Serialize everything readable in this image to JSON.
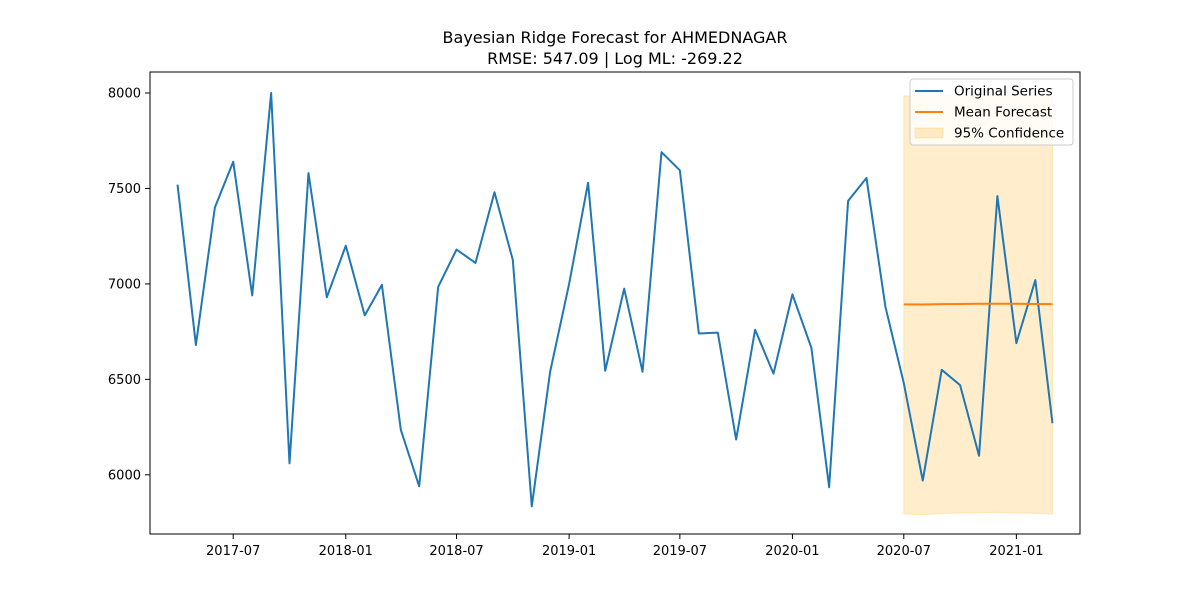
{
  "chart_data": {
    "type": "line",
    "title": "Bayesian Ridge Forecast for AHMEDNAGAR",
    "subtitle": "RMSE: 547.09 | Log ML: -269.22",
    "xlabel": "",
    "ylabel": "",
    "x_axis_type": "date",
    "xlim": [
      "2017-02-15",
      "2021-04-15"
    ],
    "ylim": [
      5690,
      8110
    ],
    "x_ticks": [
      "2017-07-01",
      "2018-01-01",
      "2018-07-01",
      "2019-01-01",
      "2019-07-01",
      "2020-01-01",
      "2020-07-01",
      "2021-01-01"
    ],
    "x_tick_labels": [
      "2017-07",
      "2018-01",
      "2018-07",
      "2019-01",
      "2019-07",
      "2020-01",
      "2020-07",
      "2021-01"
    ],
    "y_ticks": [
      6000,
      6500,
      7000,
      7500,
      8000
    ],
    "y_tick_labels": [
      "6000",
      "6500",
      "7000",
      "7500",
      "8000"
    ],
    "grid": false,
    "legend_position": "top-right",
    "legend": [
      "Original Series",
      "Mean Forecast",
      "95% Confidence"
    ],
    "series": [
      {
        "name": "Original Series",
        "color": "#1f77b4",
        "x": [
          "2017-04-01",
          "2017-05-01",
          "2017-06-01",
          "2017-07-01",
          "2017-08-01",
          "2017-09-01",
          "2017-10-01",
          "2017-11-01",
          "2017-12-01",
          "2018-01-01",
          "2018-02-01",
          "2018-03-01",
          "2018-04-01",
          "2018-05-01",
          "2018-06-01",
          "2018-07-01",
          "2018-08-01",
          "2018-09-01",
          "2018-10-01",
          "2018-11-01",
          "2018-12-01",
          "2019-01-01",
          "2019-02-01",
          "2019-03-01",
          "2019-04-01",
          "2019-05-01",
          "2019-06-01",
          "2019-07-01",
          "2019-08-01",
          "2019-09-01",
          "2019-10-01",
          "2019-11-01",
          "2019-12-01",
          "2020-01-01",
          "2020-02-01",
          "2020-03-01",
          "2020-04-01",
          "2020-05-01",
          "2020-06-01",
          "2020-07-01",
          "2020-08-01",
          "2020-09-01",
          "2020-10-01",
          "2020-11-01",
          "2020-12-01",
          "2021-01-01",
          "2021-02-01",
          "2021-03-01"
        ],
        "values": [
          7520,
          6680,
          7400,
          7640,
          6940,
          8000,
          6060,
          7580,
          6930,
          7200,
          6835,
          6995,
          6235,
          5940,
          6985,
          7180,
          7110,
          7480,
          7125,
          5835,
          6540,
          7000,
          7530,
          6545,
          6975,
          6540,
          7690,
          7595,
          6740,
          6745,
          6185,
          6760,
          6530,
          6945,
          6665,
          5935,
          7435,
          7555,
          6880,
          6480,
          5970,
          6550,
          6470,
          6100,
          7460,
          6690,
          7020,
          6270
        ]
      },
      {
        "name": "Mean Forecast",
        "color": "#ff7f0e",
        "x": [
          "2020-07-01",
          "2020-08-01",
          "2020-09-01",
          "2020-10-01",
          "2020-11-01",
          "2020-12-01",
          "2021-01-01",
          "2021-02-01",
          "2021-03-01"
        ],
        "values": [
          6893,
          6892,
          6894,
          6895,
          6896,
          6896,
          6896,
          6895,
          6894
        ]
      }
    ],
    "band": {
      "name": "95% Confidence",
      "color": "#ffa500",
      "x": [
        "2020-07-01",
        "2020-08-01",
        "2020-09-01",
        "2020-10-01",
        "2020-11-01",
        "2020-12-01",
        "2021-01-01",
        "2021-02-01",
        "2021-03-01"
      ],
      "lower": [
        5795,
        5790,
        5797,
        5800,
        5802,
        5803,
        5800,
        5798,
        5795
      ],
      "upper": [
        7985,
        7985,
        7988,
        7990,
        7992,
        7993,
        7992,
        7990,
        7988
      ]
    }
  }
}
